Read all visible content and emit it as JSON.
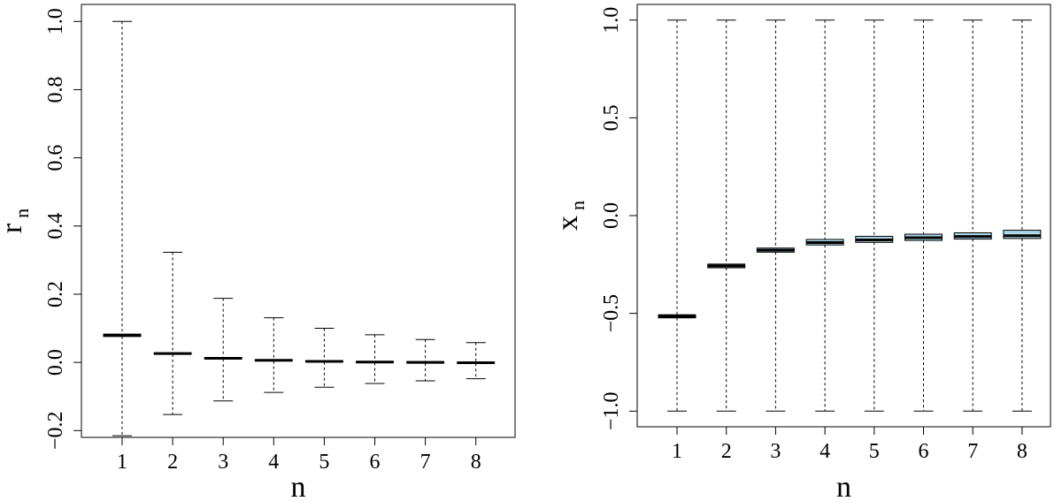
{
  "chart_data": [
    {
      "type": "box",
      "id": "left",
      "xlabel": "n",
      "ylabel_main": "r",
      "ylabel_sub": "n",
      "ylim": [
        -0.22,
        1.05
      ],
      "yticks": [
        -0.2,
        0.0,
        0.2,
        0.4,
        0.6,
        0.8,
        1.0
      ],
      "ytick_labels": [
        "−0.2",
        "0.0",
        "0.2",
        "0.4",
        "0.6",
        "0.8",
        "1.0"
      ],
      "categories": [
        "1",
        "2",
        "3",
        "4",
        "5",
        "6",
        "7",
        "8"
      ],
      "fill_color": "#ADD8E6",
      "boxes": [
        {
          "q1": 0.076,
          "median": 0.079,
          "q3": 0.083,
          "whisker_low": -0.215,
          "whisker_high": 1.0
        },
        {
          "q1": 0.024,
          "median": 0.026,
          "q3": 0.028,
          "whisker_low": -0.153,
          "whisker_high": 0.323
        },
        {
          "q1": 0.01,
          "median": 0.012,
          "q3": 0.014,
          "whisker_low": -0.113,
          "whisker_high": 0.188
        },
        {
          "q1": 0.004,
          "median": 0.006,
          "q3": 0.008,
          "whisker_low": -0.088,
          "whisker_high": 0.131
        },
        {
          "q1": 0.001,
          "median": 0.003,
          "q3": 0.005,
          "whisker_low": -0.073,
          "whisker_high": 0.1
        },
        {
          "q1": -0.001,
          "median": 0.001,
          "q3": 0.003,
          "whisker_low": -0.062,
          "whisker_high": 0.081
        },
        {
          "q1": -0.002,
          "median": 0.0,
          "q3": 0.002,
          "whisker_low": -0.054,
          "whisker_high": 0.067
        },
        {
          "q1": -0.003,
          "median": -0.001,
          "q3": 0.001,
          "whisker_low": -0.048,
          "whisker_high": 0.058
        }
      ]
    },
    {
      "type": "box",
      "id": "right",
      "xlabel": "n",
      "ylabel_main": "x",
      "ylabel_sub": "n",
      "ylim": [
        -1.08,
        1.08
      ],
      "yticks": [
        -1.0,
        -0.5,
        0.0,
        0.5,
        1.0
      ],
      "ytick_labels": [
        "−1.0",
        "−0.5",
        "0.0",
        "0.5",
        "1.0"
      ],
      "categories": [
        "1",
        "2",
        "3",
        "4",
        "5",
        "6",
        "7",
        "8"
      ],
      "fill_color": "#ADD8E6",
      "boxes": [
        {
          "q1": -0.523,
          "median": -0.515,
          "q3": -0.507,
          "whisker_low": -1.0,
          "whisker_high": 1.0
        },
        {
          "q1": -0.267,
          "median": -0.257,
          "q3": -0.248,
          "whisker_low": -1.0,
          "whisker_high": 1.0
        },
        {
          "q1": -0.187,
          "median": -0.177,
          "q3": -0.166,
          "whisker_low": -1.0,
          "whisker_high": 1.0
        },
        {
          "q1": -0.15,
          "median": -0.138,
          "q3": -0.122,
          "whisker_low": -1.0,
          "whisker_high": 1.0
        },
        {
          "q1": -0.137,
          "median": -0.124,
          "q3": -0.106,
          "whisker_low": -1.0,
          "whisker_high": 1.0
        },
        {
          "q1": -0.127,
          "median": -0.113,
          "q3": -0.095,
          "whisker_low": -1.0,
          "whisker_high": 1.0
        },
        {
          "q1": -0.12,
          "median": -0.107,
          "q3": -0.088,
          "whisker_low": -1.0,
          "whisker_high": 1.0
        },
        {
          "q1": -0.117,
          "median": -0.103,
          "q3": -0.075,
          "whisker_low": -1.0,
          "whisker_high": 1.0
        }
      ]
    }
  ]
}
